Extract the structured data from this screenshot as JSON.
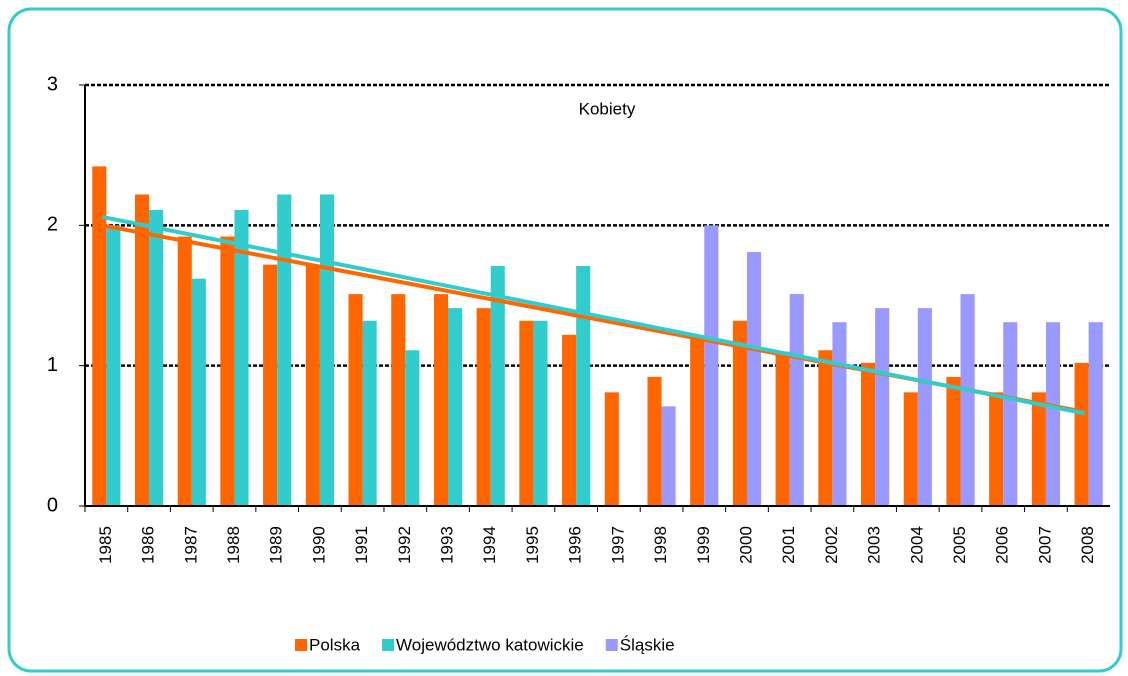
{
  "chart_data": {
    "type": "bar",
    "title": "Kobiety",
    "categories": [
      "1985",
      "1986",
      "1987",
      "1988",
      "1989",
      "1990",
      "1991",
      "1992",
      "1993",
      "1994",
      "1995",
      "1996",
      "1997",
      "1998",
      "1999",
      "2000",
      "2001",
      "2002",
      "2003",
      "2004",
      "2005",
      "2006",
      "2007",
      "2008"
    ],
    "series": [
      {
        "name": "Polska",
        "color": "#ff6600",
        "values": [
          2.42,
          2.22,
          1.92,
          1.92,
          1.72,
          1.72,
          1.51,
          1.51,
          1.51,
          1.41,
          1.32,
          1.22,
          0.81,
          0.92,
          1.2,
          1.32,
          1.1,
          1.11,
          1.02,
          0.81,
          0.92,
          0.81,
          0.81,
          1.02
        ]
      },
      {
        "name": "Województwo katowickie",
        "color": "#33cccc",
        "values": [
          2.0,
          2.11,
          1.62,
          2.11,
          2.22,
          2.22,
          1.32,
          1.11,
          1.41,
          1.71,
          1.32,
          1.71,
          null,
          null,
          null,
          null,
          null,
          null,
          null,
          null,
          null,
          null,
          null,
          null
        ]
      },
      {
        "name": "Śląskie",
        "color": "#9999ff",
        "values": [
          null,
          null,
          null,
          null,
          null,
          null,
          null,
          null,
          null,
          null,
          null,
          null,
          null,
          0.71,
          2.0,
          1.81,
          1.51,
          1.31,
          1.41,
          1.41,
          1.51,
          1.31,
          1.31,
          1.31
        ]
      }
    ],
    "trend_lines": [
      {
        "color": "#ff6600",
        "values": [
          2.0,
          0.67
        ]
      },
      {
        "color": "#33cccc",
        "values": [
          2.06,
          0.66
        ]
      }
    ],
    "ylim": [
      0,
      3
    ],
    "yticks": [
      0,
      1,
      2,
      3
    ],
    "grid": true,
    "legend": "bottom"
  }
}
